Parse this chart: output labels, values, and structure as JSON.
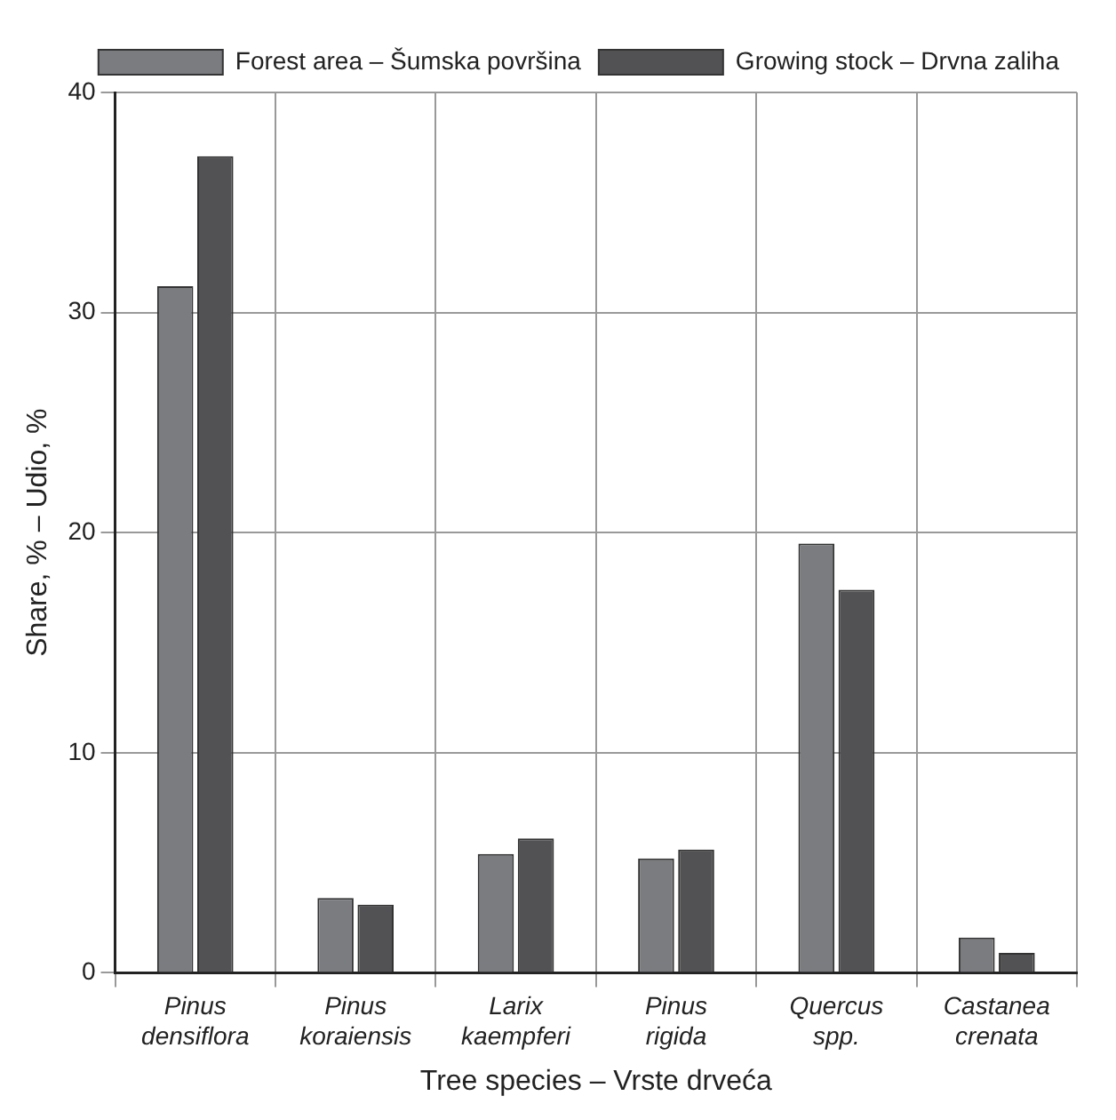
{
  "chart_data": {
    "type": "bar",
    "xlabel": "Tree species – Vrste drveća",
    "ylabel": "Share, % – Udio, %",
    "categories": [
      "Pinus densiflora",
      "Pinus koraiensis",
      "Larix kaempferi",
      "Pinus rigida",
      "Quercus spp.",
      "Castanea crenata"
    ],
    "series": [
      {
        "name": "Forest area – Šumska površina",
        "color": "#7b7c7f",
        "values": [
          31.2,
          3.4,
          5.4,
          5.2,
          19.5,
          1.6
        ]
      },
      {
        "name": "Growing stock – Drvna zaliha",
        "color": "#525254",
        "values": [
          37.1,
          3.1,
          6.1,
          5.6,
          17.4,
          0.9
        ]
      }
    ],
    "ylim": [
      0,
      40
    ],
    "yticks": [
      0,
      10,
      20,
      30,
      40
    ],
    "grid": true,
    "legend": "top right"
  }
}
